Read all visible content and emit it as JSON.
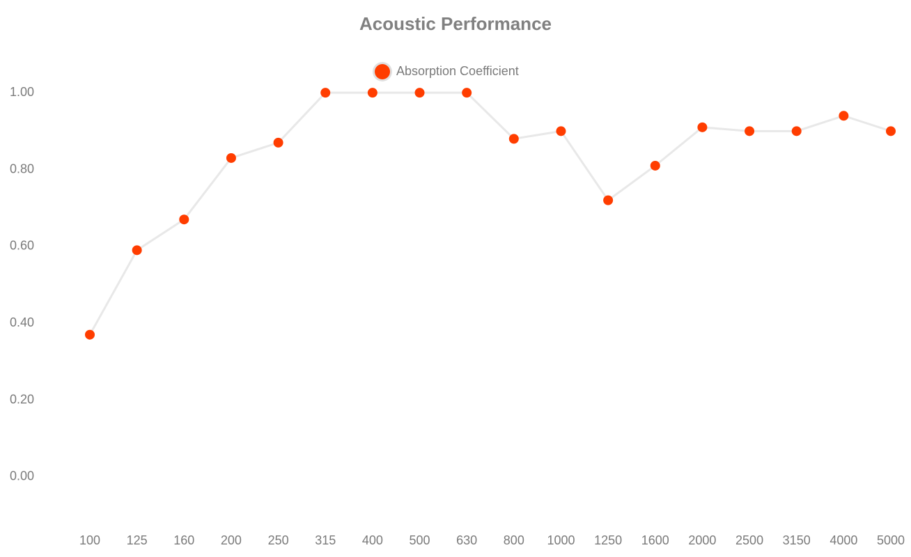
{
  "chart_data": {
    "type": "line",
    "title": "Acoustic Performance",
    "categories": [
      "100",
      "125",
      "160",
      "200",
      "250",
      "315",
      "400",
      "500",
      "630",
      "800",
      "1000",
      "1250",
      "1600",
      "2000",
      "2500",
      "3150",
      "4000",
      "5000"
    ],
    "series": [
      {
        "name": "Absorption Coefficient",
        "color": "#ff3d00",
        "line_color": "#e8e8e8",
        "values": [
          0.37,
          0.59,
          0.67,
          0.83,
          0.87,
          1.0,
          1.0,
          1.0,
          1.0,
          0.88,
          0.9,
          0.72,
          0.81,
          0.91,
          0.9,
          0.9,
          0.94,
          0.9
        ]
      }
    ],
    "ylim": [
      -0.1,
      1.1
    ],
    "yticks": [
      {
        "value": 0,
        "label": "0.00"
      },
      {
        "value": 0.2,
        "label": "0.20"
      },
      {
        "value": 0.4,
        "label": "0.40"
      },
      {
        "value": 0.6,
        "label": "0.60"
      },
      {
        "value": 0.8,
        "label": "0.80"
      },
      {
        "value": 1,
        "label": "1.00"
      }
    ],
    "grid": false,
    "legend": "top"
  }
}
